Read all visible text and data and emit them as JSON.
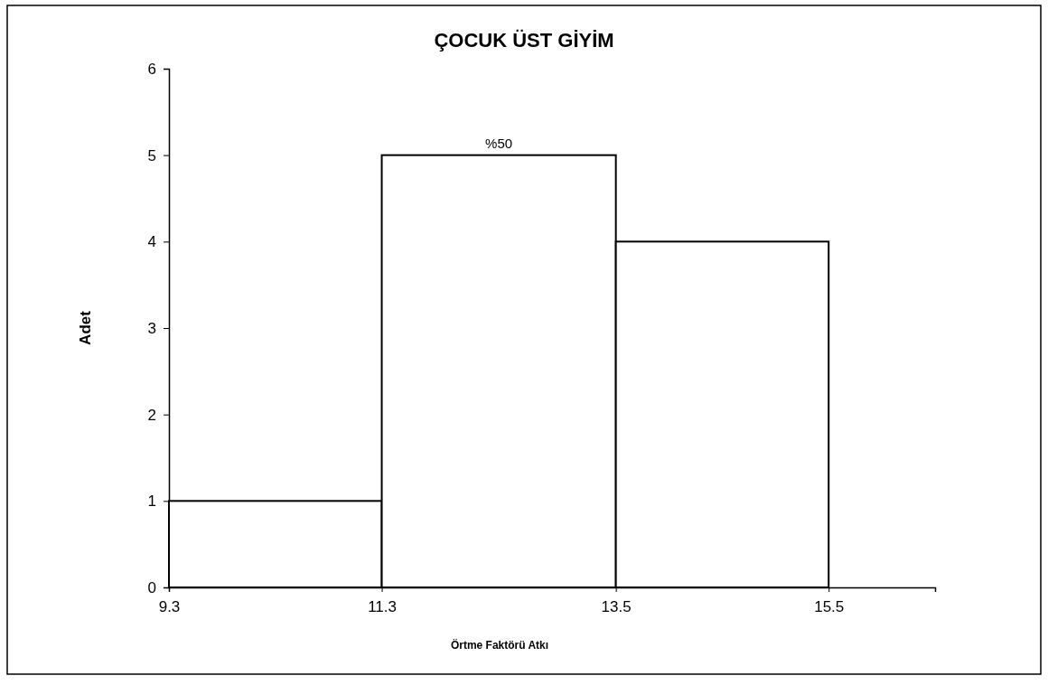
{
  "chart_data": {
    "type": "histogram",
    "title": "ÇOCUK ÜST GİYİM",
    "xlabel": "Örtme Faktörü Atkı",
    "ylabel": "Adet",
    "bins": [
      9.3,
      11.3,
      13.5,
      15.5
    ],
    "values": [
      1,
      5,
      4
    ],
    "annotations": [
      {
        "text": "%50",
        "x": 12.4,
        "y": 5
      }
    ],
    "color": "#ffffff",
    "xlim": [
      9.3,
      16.5
    ],
    "xticks": [
      9.3,
      11.3,
      13.5,
      15.5
    ],
    "ylim": [
      0,
      6
    ],
    "yticks": [
      0,
      1,
      2,
      3,
      4,
      5,
      6
    ],
    "grid": false
  }
}
